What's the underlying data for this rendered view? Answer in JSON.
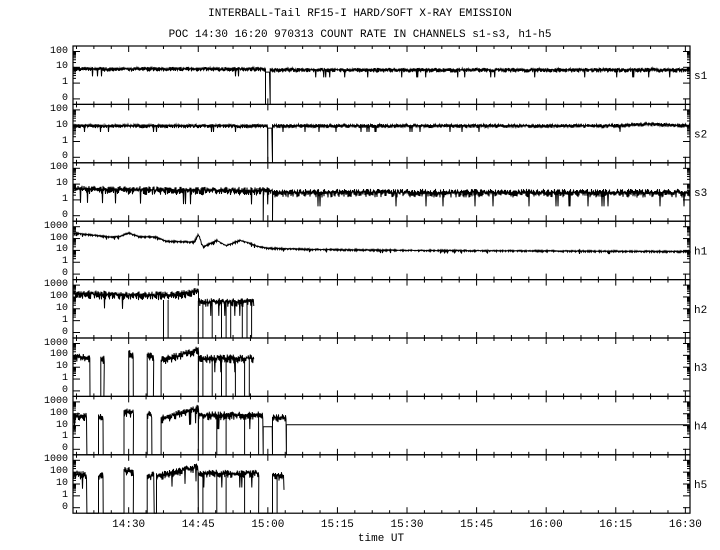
{
  "title": "INTERBALL-Tail RF15-I HARD/SOFT X-RAY EMISSION",
  "subtitle": "POC 14:30 16:20 970313  COUNT RATE IN CHANNELS s1-s3, h1-h5",
  "chart_data": {
    "type": "line",
    "title": "INTERBALL-Tail RF15-I HARD/SOFT X-RAY EMISSION",
    "subtitle": "POC 14:30 16:20 970313  COUNT RATE IN CHANNELS s1-s3, h1-h5",
    "xlabel": "time UT",
    "xlim": [
      "14:18",
      "16:31"
    ],
    "x_tick_labels": [
      "14:30",
      "14:45",
      "15:00",
      "15:15",
      "15:30",
      "15:45",
      "16:00",
      "16:15",
      "16:30"
    ],
    "y_scale": "log (0 shown below 1)",
    "grid": false,
    "line_color": "#000000",
    "panels": [
      {
        "name": "s1",
        "yticks": [
          "100",
          "10",
          "1",
          "0"
        ],
        "ymax": 100,
        "noise": 0.12,
        "segments": [
          [
            [
              "14:18",
              8
            ],
            [
              "14:59:30",
              8
            ]
          ],
          [
            [
              "14:59:30",
              5
            ],
            [
              "15:00:30",
              5
            ]
          ],
          [
            [
              "15:00:30",
              7
            ],
            [
              "16:31",
              7
            ]
          ]
        ]
      },
      {
        "name": "s2",
        "yticks": [
          "100",
          "10",
          "1",
          "0"
        ],
        "ymax": 100,
        "noise": 0.1,
        "segments": [
          [
            [
              "14:18",
              10
            ],
            [
              "15:00",
              10
            ]
          ],
          [
            [
              "15:00",
              7
            ],
            [
              "15:01",
              7
            ]
          ],
          [
            [
              "15:01",
              10
            ],
            [
              "16:15",
              10
            ],
            [
              "16:22",
              13
            ],
            [
              "16:31",
              10
            ]
          ]
        ]
      },
      {
        "name": "s3",
        "yticks": [
          "100",
          "10",
          "1",
          "0"
        ],
        "ymax": 100,
        "noise": 0.22,
        "segments": [
          [
            [
              "14:18",
              5
            ],
            [
              "14:45",
              4
            ],
            [
              "14:59",
              4
            ]
          ],
          [
            [
              "14:59",
              4
            ],
            [
              "15:01",
              4
            ]
          ],
          [
            [
              "15:01",
              3
            ],
            [
              "16:31",
              3
            ]
          ]
        ]
      },
      {
        "name": "h1",
        "yticks": [
          "1000",
          "100",
          "10",
          "1",
          "0"
        ],
        "ymax": 1000,
        "noise": 0.06,
        "segments": [
          [
            [
              "14:18",
              300
            ],
            [
              "14:22",
              200
            ],
            [
              "14:26",
              130
            ],
            [
              "14:28",
              150
            ],
            [
              "14:30",
              300
            ],
            [
              "14:32",
              150
            ],
            [
              "14:36",
              130
            ],
            [
              "14:38",
              60
            ],
            [
              "14:44",
              50
            ],
            [
              "14:45",
              220
            ],
            [
              "14:46",
              20
            ],
            [
              "14:49",
              70
            ],
            [
              "14:51",
              25
            ],
            [
              "14:54",
              70
            ],
            [
              "14:56",
              40
            ],
            [
              "14:58",
              20
            ],
            [
              "15:00",
              15
            ],
            [
              "15:10",
              12
            ],
            [
              "15:30",
              10
            ],
            [
              "16:00",
              9
            ],
            [
              "16:31",
              8
            ]
          ]
        ]
      },
      {
        "name": "h2",
        "yticks": [
          "1000",
          "100",
          "10",
          "1",
          "0"
        ],
        "ymax": 1000,
        "noise": 0.3,
        "segments": [
          [
            [
              "14:18",
              200
            ],
            [
              "14:30",
              150
            ],
            [
              "14:40",
              150
            ],
            [
              "14:45",
              350
            ]
          ],
          [
            [
              "14:45",
              40
            ],
            [
              "14:57",
              40
            ]
          ]
        ],
        "dropouts": [
          "14:37:30",
          "14:38:30",
          "14:46",
          "14:48",
          "14:50",
          "14:51",
          "14:52",
          "14:54:30",
          "14:55:30",
          "14:56:30"
        ]
      },
      {
        "name": "h3",
        "yticks": [
          "1000",
          "100",
          "10",
          "1",
          "0"
        ],
        "ymax": 1000,
        "noise": 0.3,
        "segments": [
          [
            [
              "14:18:30",
              70
            ],
            [
              "14:21:40",
              60
            ]
          ],
          [
            [
              "14:24",
              50
            ],
            [
              "14:24:40",
              50
            ]
          ],
          [
            [
              "14:30",
              150
            ],
            [
              "14:31",
              120
            ]
          ],
          [
            [
              "14:34",
              100
            ],
            [
              "14:35:20",
              80
            ]
          ],
          [
            [
              "14:37",
              40
            ],
            [
              "14:45",
              300
            ]
          ],
          [
            [
              "14:45",
              60
            ],
            [
              "14:57",
              60
            ]
          ]
        ],
        "dropouts": [
          "14:46",
          "14:48",
          "14:50",
          "14:51",
          "14:53",
          "14:55",
          "14:56"
        ]
      },
      {
        "name": "h4",
        "yticks": [
          "1000",
          "100",
          "10",
          "1",
          "0"
        ],
        "ymax": 1000,
        "noise": 0.3,
        "segments": [
          [
            [
              "14:18",
              70
            ],
            [
              "14:21",
              60
            ]
          ],
          [
            [
              "14:23:30",
              50
            ],
            [
              "14:24:30",
              50
            ]
          ],
          [
            [
              "14:29",
              150
            ],
            [
              "14:31",
              120
            ]
          ],
          [
            [
              "14:34",
              100
            ],
            [
              "14:35",
              80
            ]
          ],
          [
            [
              "14:37",
              40
            ],
            [
              "14:45",
              300
            ]
          ],
          [
            [
              "14:45",
              80
            ],
            [
              "14:59",
              80
            ]
          ],
          [
            [
              "14:59",
              8
            ],
            [
              "15:01",
              8
            ]
          ],
          [
            [
              "15:01",
              50
            ],
            [
              "15:04",
              50
            ]
          ],
          [
            [
              "15:04",
              12
            ],
            [
              "16:31",
              12
            ]
          ]
        ],
        "dropouts": [
          "14:46",
          "14:49",
          "14:51",
          "14:55",
          "14:58"
        ]
      },
      {
        "name": "h5",
        "yticks": [
          "1000",
          "100",
          "10",
          "1",
          "0"
        ],
        "ymax": 1000,
        "noise": 0.3,
        "segments": [
          [
            [
              "14:18",
              70
            ],
            [
              "14:21",
              60
            ]
          ],
          [
            [
              "14:23:30",
              50
            ],
            [
              "14:24:30",
              50
            ]
          ],
          [
            [
              "14:29",
              150
            ],
            [
              "14:31",
              120
            ]
          ],
          [
            [
              "14:34",
              30
            ],
            [
              "14:35:30",
              100
            ]
          ],
          [
            [
              "14:36",
              50
            ],
            [
              "14:45",
              300
            ]
          ],
          [
            [
              "14:45",
              80
            ],
            [
              "14:58",
              80
            ]
          ],
          [
            [
              "15:01",
              50
            ],
            [
              "15:03:30",
              50
            ]
          ]
        ],
        "dropouts": [
          "14:46",
          "14:49",
          "14:51",
          "14:55",
          "15:02"
        ]
      }
    ]
  }
}
